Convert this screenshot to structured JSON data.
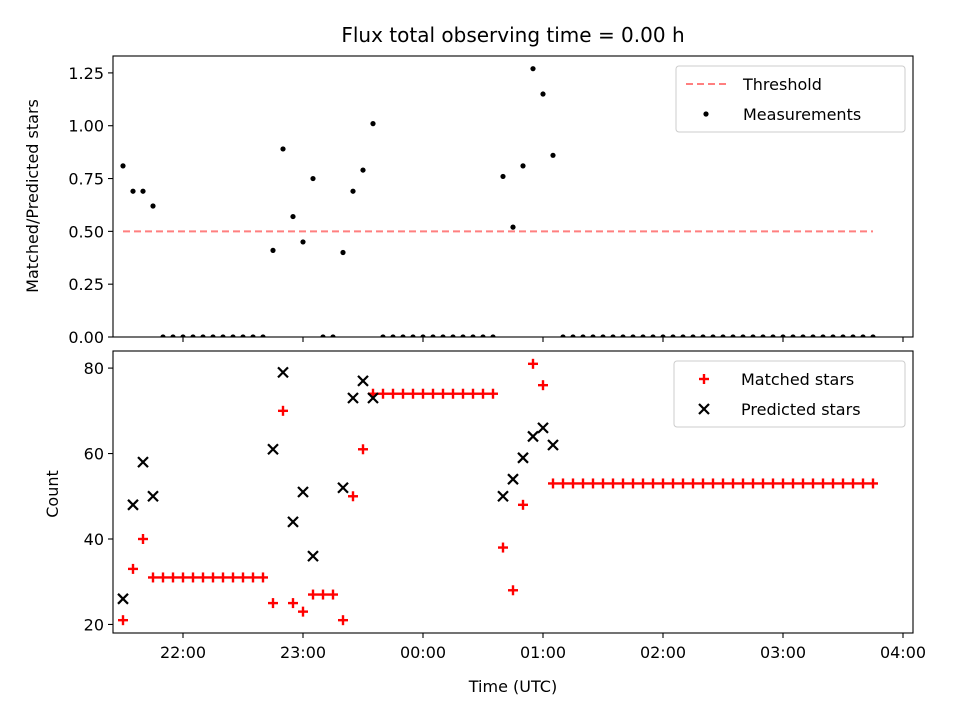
{
  "figure_title": "Flux total observing time = 0.00 h",
  "colors": {
    "threshold": "#ff7f7f",
    "measurements": "#000000",
    "matched": "#ff0000",
    "predicted": "#000000"
  },
  "chart_data": [
    {
      "type": "scatter",
      "title": "Flux total observing time = 0.00 h",
      "xlabel": "",
      "ylabel": "Matched/Predicted stars",
      "xlim": [
        "21:25",
        "04:05"
      ],
      "ylim": [
        0,
        1.33
      ],
      "yticks": [
        0.0,
        0.25,
        0.5,
        0.75,
        1.0,
        1.25
      ],
      "ytick_labels": [
        "0.00",
        "0.25",
        "0.50",
        "0.75",
        "1.00",
        "1.25"
      ],
      "xticks": [
        "22:00",
        "23:00",
        "00:00",
        "01:00",
        "02:00",
        "03:00",
        "04:00"
      ],
      "legend": {
        "placement": "top-right",
        "entries": [
          "Threshold",
          "Measurements"
        ]
      },
      "threshold": {
        "name": "Threshold",
        "y": 0.5,
        "x": [
          "21:30",
          "03:45"
        ]
      },
      "series": [
        {
          "name": "Measurements",
          "points": [
            [
              "21:30",
              0.81
            ],
            [
              "21:35",
              0.69
            ],
            [
              "21:40",
              0.69
            ],
            [
              "21:45",
              0.62
            ],
            [
              "21:50",
              0.0
            ],
            [
              "21:55",
              0.0
            ],
            [
              "22:00",
              0.0
            ],
            [
              "22:05",
              0.0
            ],
            [
              "22:10",
              0.0
            ],
            [
              "22:15",
              0.0
            ],
            [
              "22:20",
              0.0
            ],
            [
              "22:25",
              0.0
            ],
            [
              "22:30",
              0.0
            ],
            [
              "22:35",
              0.0
            ],
            [
              "22:40",
              0.0
            ],
            [
              "22:45",
              0.41
            ],
            [
              "22:50",
              0.89
            ],
            [
              "22:55",
              0.57
            ],
            [
              "23:00",
              0.45
            ],
            [
              "23:05",
              0.75
            ],
            [
              "23:10",
              0.0
            ],
            [
              "23:15",
              0.0
            ],
            [
              "23:20",
              0.4
            ],
            [
              "23:25",
              0.69
            ],
            [
              "23:30",
              0.79
            ],
            [
              "23:35",
              1.01
            ],
            [
              "23:40",
              0.0
            ],
            [
              "23:45",
              0.0
            ],
            [
              "23:50",
              0.0
            ],
            [
              "23:55",
              0.0
            ],
            [
              "00:00",
              0.0
            ],
            [
              "00:05",
              0.0
            ],
            [
              "00:10",
              0.0
            ],
            [
              "00:15",
              0.0
            ],
            [
              "00:20",
              0.0
            ],
            [
              "00:25",
              0.0
            ],
            [
              "00:30",
              0.0
            ],
            [
              "00:35",
              0.0
            ],
            [
              "00:40",
              0.76
            ],
            [
              "00:45",
              0.52
            ],
            [
              "00:50",
              0.81
            ],
            [
              "00:55",
              1.27
            ],
            [
              "01:00",
              1.15
            ],
            [
              "01:05",
              0.86
            ],
            [
              "01:10",
              0.0
            ],
            [
              "01:15",
              0.0
            ],
            [
              "01:20",
              0.0
            ],
            [
              "01:25",
              0.0
            ],
            [
              "01:30",
              0.0
            ],
            [
              "01:35",
              0.0
            ],
            [
              "01:40",
              0.0
            ],
            [
              "01:45",
              0.0
            ],
            [
              "01:50",
              0.0
            ],
            [
              "01:55",
              0.0
            ],
            [
              "02:00",
              0.0
            ],
            [
              "02:05",
              0.0
            ],
            [
              "02:10",
              0.0
            ],
            [
              "02:15",
              0.0
            ],
            [
              "02:20",
              0.0
            ],
            [
              "02:25",
              0.0
            ],
            [
              "02:30",
              0.0
            ],
            [
              "02:35",
              0.0
            ],
            [
              "02:40",
              0.0
            ],
            [
              "02:45",
              0.0
            ],
            [
              "02:50",
              0.0
            ],
            [
              "02:55",
              0.0
            ],
            [
              "03:00",
              0.0
            ],
            [
              "03:05",
              0.0
            ],
            [
              "03:10",
              0.0
            ],
            [
              "03:15",
              0.0
            ],
            [
              "03:20",
              0.0
            ],
            [
              "03:25",
              0.0
            ],
            [
              "03:30",
              0.0
            ],
            [
              "03:35",
              0.0
            ],
            [
              "03:40",
              0.0
            ],
            [
              "03:45",
              0.0
            ]
          ]
        }
      ]
    },
    {
      "type": "scatter",
      "title": "",
      "xlabel": "Time (UTC)",
      "ylabel": "Count",
      "xlim": [
        "21:25",
        "04:05"
      ],
      "ylim": [
        18,
        84
      ],
      "yticks": [
        20,
        40,
        60,
        80
      ],
      "ytick_labels": [
        "20",
        "40",
        "60",
        "80"
      ],
      "xticks": [
        "22:00",
        "23:00",
        "00:00",
        "01:00",
        "02:00",
        "03:00",
        "04:00"
      ],
      "xtick_labels": [
        "22:00",
        "23:00",
        "00:00",
        "01:00",
        "02:00",
        "03:00",
        "04:00"
      ],
      "legend": {
        "placement": "top-right",
        "entries": [
          "Matched stars",
          "Predicted stars"
        ]
      },
      "series": [
        {
          "name": "Matched stars",
          "marker": "+",
          "points": [
            [
              "21:30",
              21
            ],
            [
              "21:35",
              33
            ],
            [
              "21:40",
              40
            ],
            [
              "21:45",
              31
            ],
            [
              "21:50",
              31
            ],
            [
              "21:55",
              31
            ],
            [
              "22:00",
              31
            ],
            [
              "22:05",
              31
            ],
            [
              "22:10",
              31
            ],
            [
              "22:15",
              31
            ],
            [
              "22:20",
              31
            ],
            [
              "22:25",
              31
            ],
            [
              "22:30",
              31
            ],
            [
              "22:35",
              31
            ],
            [
              "22:40",
              31
            ],
            [
              "22:45",
              25
            ],
            [
              "22:50",
              70
            ],
            [
              "22:55",
              25
            ],
            [
              "23:00",
              23
            ],
            [
              "23:05",
              27
            ],
            [
              "23:10",
              27
            ],
            [
              "23:15",
              27
            ],
            [
              "23:20",
              21
            ],
            [
              "23:25",
              50
            ],
            [
              "23:30",
              61
            ],
            [
              "23:35",
              74
            ],
            [
              "23:40",
              74
            ],
            [
              "23:45",
              74
            ],
            [
              "23:50",
              74
            ],
            [
              "23:55",
              74
            ],
            [
              "00:00",
              74
            ],
            [
              "00:05",
              74
            ],
            [
              "00:10",
              74
            ],
            [
              "00:15",
              74
            ],
            [
              "00:20",
              74
            ],
            [
              "00:25",
              74
            ],
            [
              "00:30",
              74
            ],
            [
              "00:35",
              74
            ],
            [
              "00:40",
              38
            ],
            [
              "00:45",
              28
            ],
            [
              "00:50",
              48
            ],
            [
              "00:55",
              81
            ],
            [
              "01:00",
              76
            ],
            [
              "01:05",
              53
            ],
            [
              "01:10",
              53
            ],
            [
              "01:15",
              53
            ],
            [
              "01:20",
              53
            ],
            [
              "01:25",
              53
            ],
            [
              "01:30",
              53
            ],
            [
              "01:35",
              53
            ],
            [
              "01:40",
              53
            ],
            [
              "01:45",
              53
            ],
            [
              "01:50",
              53
            ],
            [
              "01:55",
              53
            ],
            [
              "02:00",
              53
            ],
            [
              "02:05",
              53
            ],
            [
              "02:10",
              53
            ],
            [
              "02:15",
              53
            ],
            [
              "02:20",
              53
            ],
            [
              "02:25",
              53
            ],
            [
              "02:30",
              53
            ],
            [
              "02:35",
              53
            ],
            [
              "02:40",
              53
            ],
            [
              "02:45",
              53
            ],
            [
              "02:50",
              53
            ],
            [
              "02:55",
              53
            ],
            [
              "03:00",
              53
            ],
            [
              "03:05",
              53
            ],
            [
              "03:10",
              53
            ],
            [
              "03:15",
              53
            ],
            [
              "03:20",
              53
            ],
            [
              "03:25",
              53
            ],
            [
              "03:30",
              53
            ],
            [
              "03:35",
              53
            ],
            [
              "03:40",
              53
            ],
            [
              "03:45",
              53
            ]
          ]
        },
        {
          "name": "Predicted stars",
          "marker": "x",
          "points": [
            [
              "21:30",
              26
            ],
            [
              "21:35",
              48
            ],
            [
              "21:40",
              58
            ],
            [
              "21:45",
              50
            ],
            [
              "22:45",
              61
            ],
            [
              "22:50",
              79
            ],
            [
              "22:55",
              44
            ],
            [
              "23:00",
              51
            ],
            [
              "23:05",
              36
            ],
            [
              "23:20",
              52
            ],
            [
              "23:25",
              73
            ],
            [
              "23:30",
              77
            ],
            [
              "23:35",
              73
            ],
            [
              "00:40",
              50
            ],
            [
              "00:45",
              54
            ],
            [
              "00:50",
              59
            ],
            [
              "00:55",
              64
            ],
            [
              "01:00",
              66
            ],
            [
              "01:05",
              62
            ]
          ]
        }
      ]
    }
  ]
}
